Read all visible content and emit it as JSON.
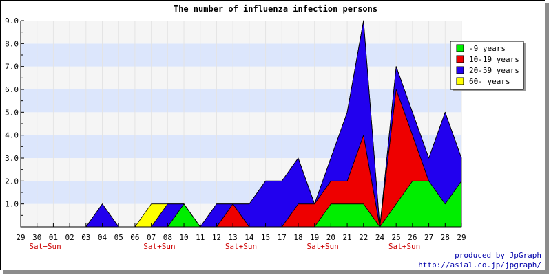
{
  "chart_data": {
    "type": "area",
    "title": "The number of influenza infection persons",
    "xlabel": "",
    "ylabel": "",
    "ylim": [
      0,
      9
    ],
    "y_ticks": [
      "1.0",
      "2.0",
      "3.0",
      "4.0",
      "5.0",
      "6.0",
      "7.0",
      "8.0",
      "9.0"
    ],
    "categories": [
      "29",
      "30",
      "01",
      "02",
      "03",
      "04",
      "05",
      "06",
      "07",
      "08",
      "10",
      "11",
      "12",
      "13",
      "14",
      "15",
      "17",
      "18",
      "19",
      "20",
      "21",
      "22",
      "24",
      "25",
      "26",
      "27",
      "28",
      "29"
    ],
    "weekend_labels": [
      {
        "category_index": 1,
        "text": "Sat+Sun"
      },
      {
        "category_index": 8,
        "text": "Sat+Sun"
      },
      {
        "category_index": 13,
        "text": "Sat+Sun"
      },
      {
        "category_index": 18,
        "text": "Sat+Sun"
      },
      {
        "category_index": 23,
        "text": "Sat+Sun"
      }
    ],
    "stacked": true,
    "series": [
      {
        "name": "-9 years",
        "color": "#00ee00",
        "values": [
          0,
          0,
          0,
          0,
          0,
          0,
          0,
          0,
          0,
          0,
          1,
          0,
          0,
          0,
          0,
          0,
          0,
          0,
          0,
          1,
          1,
          1,
          0,
          1,
          2,
          2,
          1,
          2
        ]
      },
      {
        "name": "10-19 years",
        "color": "#ee0000",
        "values": [
          0,
          0,
          0,
          0,
          0,
          0,
          0,
          0,
          0,
          0,
          0,
          0,
          0,
          1,
          0,
          0,
          0,
          1,
          1,
          1,
          1,
          3,
          0,
          5,
          2,
          0,
          0,
          0
        ]
      },
      {
        "name": "20-59 years",
        "color": "#2200ee",
        "values": [
          0,
          0,
          0,
          0,
          0,
          1,
          0,
          0,
          0,
          1,
          0,
          0,
          1,
          0,
          1,
          2,
          2,
          2,
          0,
          1,
          3,
          5,
          0,
          1,
          1,
          1,
          4,
          1
        ]
      },
      {
        "name": "60- years",
        "color": "#ffff00",
        "values": [
          0,
          0,
          0,
          0,
          0,
          0,
          0,
          0,
          1,
          0,
          0,
          0,
          0,
          0,
          0,
          0,
          0,
          0,
          0,
          0,
          0,
          0,
          0,
          0,
          0,
          0,
          0,
          0
        ]
      }
    ],
    "grid": true,
    "legend_position": "top-right",
    "colors": {
      "band_a": "#f5f5f5",
      "band_b": "#dce6fc",
      "weekend_label": "#cc0000",
      "credit": "#0000aa"
    }
  },
  "credits": {
    "line1": "produced by JpGraph",
    "line2": "http://asial.co.jp/jpgraph/"
  }
}
